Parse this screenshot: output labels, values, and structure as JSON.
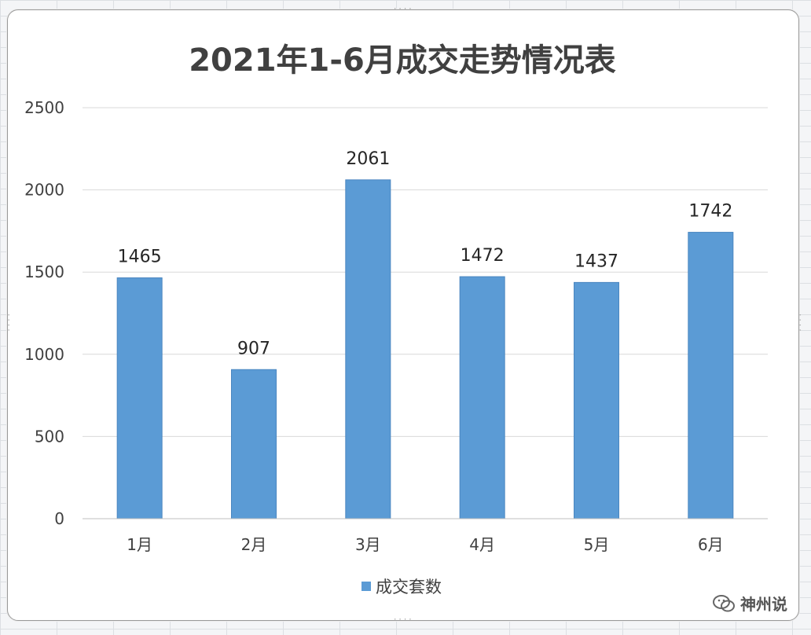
{
  "watermark": {
    "text": "神州说"
  },
  "chart_data": {
    "type": "bar",
    "title": "2021年1-6月成交走势情况表",
    "categories": [
      "1月",
      "2月",
      "3月",
      "4月",
      "5月",
      "6月"
    ],
    "series": [
      {
        "name": "成交套数",
        "values": [
          1465,
          907,
          2061,
          1472,
          1437,
          1742
        ],
        "color": "#5b9bd5"
      }
    ],
    "ylim": [
      0,
      2500
    ],
    "yticks": [
      0,
      500,
      1000,
      1500,
      2000,
      2500
    ],
    "grid": true,
    "data_labels": true,
    "legend_position": "bottom",
    "gridline_color": "#d9d9d9",
    "bar_color": "#5b9bd5"
  }
}
